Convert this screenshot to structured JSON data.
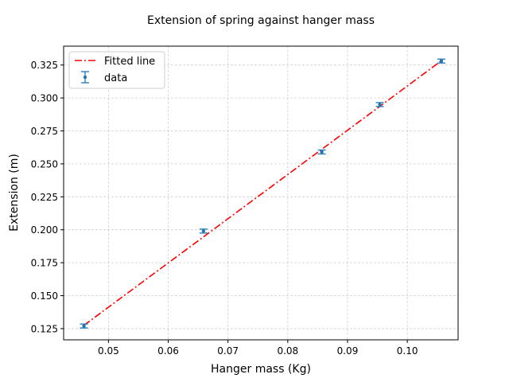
{
  "chart_data": {
    "type": "scatter",
    "title": "Extension of spring against hanger mass",
    "xlabel": "Hanger mass (Kg)",
    "ylabel": "Extension (m)",
    "xlim": [
      0.0425,
      0.1085
    ],
    "ylim": [
      0.1165,
      0.3393
    ],
    "x_ticks": [
      0.05,
      0.06,
      0.07,
      0.08,
      0.09,
      0.1
    ],
    "x_tick_labels": [
      "0.05",
      "0.06",
      "0.07",
      "0.08",
      "0.09",
      "0.10"
    ],
    "y_ticks": [
      0.125,
      0.15,
      0.175,
      0.2,
      0.225,
      0.25,
      0.275,
      0.3,
      0.325
    ],
    "y_tick_labels": [
      "0.125",
      "0.150",
      "0.175",
      "0.200",
      "0.225",
      "0.250",
      "0.275",
      "0.300",
      "0.325"
    ],
    "grid": true,
    "legend_position": "top-left",
    "series": [
      {
        "name": "data",
        "kind": "errorbar",
        "color": "#1f77b4",
        "x": [
          0.0459,
          0.0659,
          0.0857,
          0.0954,
          0.1057
        ],
        "y": [
          0.127,
          0.199,
          0.259,
          0.295,
          0.328
        ],
        "yerr": [
          0.0015,
          0.0015,
          0.0015,
          0.0015,
          0.0015
        ]
      },
      {
        "name": "Fitted line",
        "kind": "line",
        "style": "dash-dot",
        "color": "#ff0000",
        "x": [
          0.0459,
          0.1057
        ],
        "y": [
          0.1275,
          0.3282
        ]
      }
    ]
  }
}
